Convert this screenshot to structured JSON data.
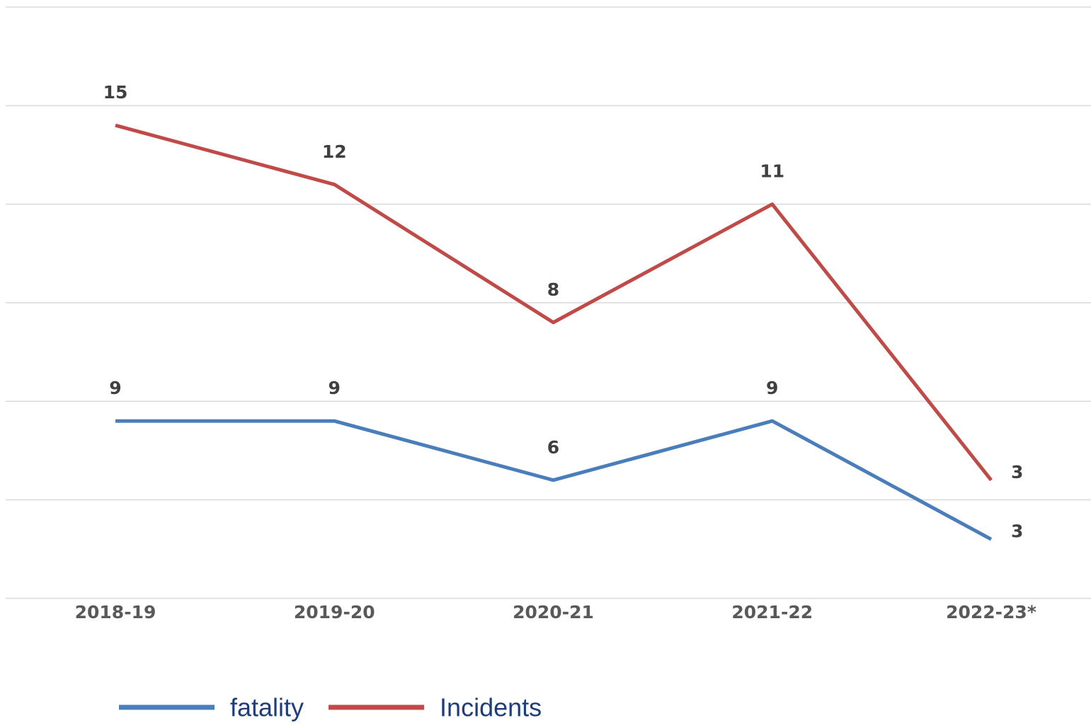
{
  "chart_data": {
    "type": "line",
    "stacked": true,
    "categories": [
      "2018-19",
      "2019-20",
      "2020-21",
      "2021-22",
      "2022-23*"
    ],
    "series": [
      {
        "name": "fatality",
        "color": "#4a7ebb",
        "values": [
          9,
          9,
          6,
          9,
          3
        ]
      },
      {
        "name": "Incidents",
        "color": "#be4b48",
        "values": [
          15,
          12,
          8,
          11,
          3
        ]
      }
    ],
    "ylim": [
      0,
      30
    ],
    "yticks": [
      0,
      5,
      10,
      15,
      20,
      25,
      30
    ],
    "grid": true,
    "legend": "bottom"
  }
}
